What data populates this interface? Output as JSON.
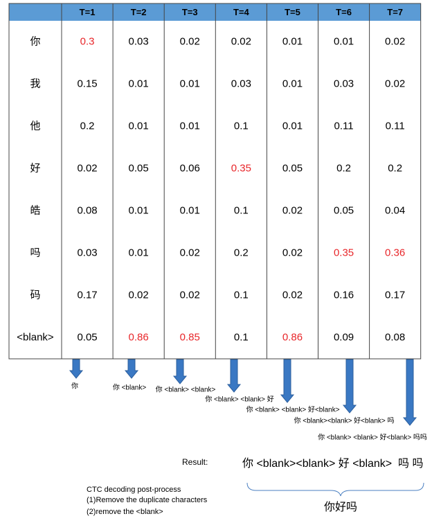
{
  "table": {
    "columns": [
      "T=1",
      "T=2",
      "T=3",
      "T=4",
      "T=5",
      "T=6",
      "T=7"
    ],
    "rows": [
      {
        "label": "你",
        "cells": [
          0.3,
          0.03,
          0.02,
          0.02,
          0.01,
          0.01,
          0.02
        ]
      },
      {
        "label": "我",
        "cells": [
          0.15,
          0.01,
          0.01,
          0.03,
          0.01,
          0.03,
          0.02
        ]
      },
      {
        "label": "他",
        "cells": [
          0.2,
          0.01,
          0.01,
          0.1,
          0.01,
          0.11,
          0.11
        ]
      },
      {
        "label": "好",
        "cells": [
          0.02,
          0.05,
          0.06,
          0.35,
          0.05,
          0.2,
          0.2
        ]
      },
      {
        "label": "皓",
        "cells": [
          0.08,
          0.01,
          0.01,
          0.1,
          0.02,
          0.05,
          0.04
        ]
      },
      {
        "label": "吗",
        "cells": [
          0.03,
          0.01,
          0.02,
          0.2,
          0.02,
          0.35,
          0.36
        ]
      },
      {
        "label": "码",
        "cells": [
          0.17,
          0.02,
          0.02,
          0.1,
          0.02,
          0.16,
          0.17
        ]
      },
      {
        "label": "<blank>",
        "cells": [
          0.05,
          0.86,
          0.85,
          0.1,
          0.86,
          0.09,
          0.08
        ]
      }
    ],
    "highlight": [
      [
        0,
        0
      ],
      [
        3,
        3
      ],
      [
        5,
        5
      ],
      [
        5,
        6
      ],
      [
        7,
        1
      ],
      [
        7,
        2
      ],
      [
        7,
        4
      ]
    ],
    "highlight_color": "#e8262a",
    "header_color": "#5b9bd5"
  },
  "steps": [
    "你",
    "你 <blank>",
    "你 <blank> <blank>",
    "你 <blank> <blank> 好",
    "你 <blank> <blank> 好<blank>",
    "你 <blank><blank> 好<blank> 吗",
    "你 <blank> <blank> 好<blank> 吗吗"
  ],
  "result": {
    "label": "Result:",
    "value": "你 <blank><blank> 好 <blank>  吗 吗",
    "final": "你好吗"
  },
  "postprocess": [
    "CTC decoding post-process",
    "(1)Remove the duplicate characters",
    "(2)remove the <blank>"
  ]
}
